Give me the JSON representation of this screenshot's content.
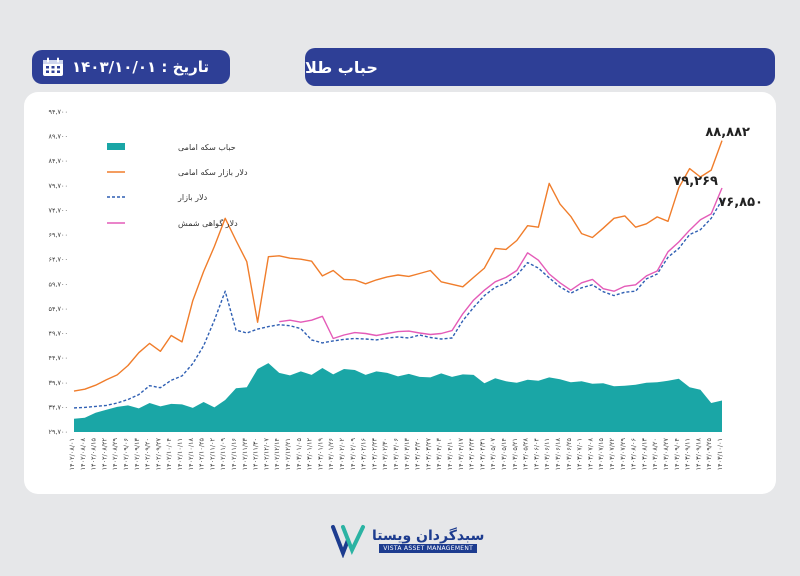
{
  "header": {
    "title": "حباب طلا",
    "date_label": "تاریخ : ۱۴۰۳/۱۰/۰۱",
    "calendar_icon": "calendar-icon"
  },
  "branding": {
    "name": "سبدگردان ویستا",
    "subtitle": "VISTA ASSET MANAGEMENT"
  },
  "colors": {
    "header_bg": "#2e3f96",
    "bubble": "#1aa6a6",
    "coin_dollar": "#f07d2b",
    "market_dollar": "#2f5fb3",
    "cert_dollar": "#e45bb8"
  },
  "chart_data": {
    "type": "line",
    "title": "",
    "xlabel": "",
    "ylabel": "",
    "y_tick_labels": [
      "۲۹,۷۰۰",
      "۳۴,۷۰۰",
      "۳۹,۷۰۰",
      "۴۴,۷۰۰",
      "۴۹,۷۰۰",
      "۵۴,۷۰۰",
      "۵۹,۷۰۰",
      "۶۴,۷۰۰",
      "۶۹,۷۰۰",
      "۷۴,۷۰۰",
      "۷۹,۷۰۰",
      "۸۴,۷۰۰",
      "۸۹,۷۰۰",
      "۹۴,۷۰۰"
    ],
    "ylim": [
      29700,
      94700
    ],
    "x_labels": [
      "۱۴۰۲/۰۸/۰۱",
      "۱۴۰۲/۰۸/۰۸",
      "۱۴۰۲/۰۸/۱۵",
      "۱۴۰۲/۰۸/۲۲",
      "۱۴۰۲/۰۸/۲۹",
      "۱۴۰۲/۰۹/۰۶",
      "۱۴۰۲/۰۹/۱۳",
      "۱۴۰۲/۰۹/۲۰",
      "۱۴۰۲/۰۹/۲۷",
      "۱۴۰۲/۱۰/۰۴",
      "۱۴۰۲/۱۰/۱۱",
      "۱۴۰۲/۱۰/۱۸",
      "۱۴۰۲/۱۰/۲۵",
      "۱۴۰۲/۱۱/۰۲",
      "۱۴۰۲/۱۱/۰۹",
      "۱۴۰۲/۱۱/۱۶",
      "۱۴۰۲/۱۱/۲۳",
      "۱۴۰۲/۱۱/۳۰",
      "۱۴۰۲/۱۲/۰۷",
      "۱۴۰۲/۱۲/۱۴",
      "۱۴۰۲/۱۲/۲۱",
      "۱۴۰۳/۰۱/۰۵",
      "۱۴۰۳/۰۱/۱۲",
      "۱۴۰۳/۰۱/۱۹",
      "۱۴۰۳/۰۱/۲۶",
      "۱۴۰۳/۰۲/۰۲",
      "۱۴۰۳/۰۲/۰۹",
      "۱۴۰۳/۰۲/۱۶",
      "۱۴۰۳/۰۲/۲۳",
      "۱۴۰۳/۰۲/۳۰",
      "۱۴۰۳/۰۳/۰۶",
      "۱۴۰۳/۰۳/۱۳",
      "۱۴۰۳/۰۳/۲۰",
      "۱۴۰۳/۰۳/۲۷",
      "۱۴۰۳/۰۴/۰۳",
      "۱۴۰۳/۰۴/۱۰",
      "۱۴۰۳/۰۴/۱۷",
      "۱۴۰۳/۰۴/۲۴",
      "۱۴۰۳/۰۴/۳۱",
      "۱۴۰۳/۰۵/۰۷",
      "۱۴۰۳/۰۵/۱۴",
      "۱۴۰۳/۰۵/۲۱",
      "۱۴۰۳/۰۵/۲۸",
      "۱۴۰۳/۰۶/۰۴",
      "۱۴۰۳/۰۶/۱۱",
      "۱۴۰۳/۰۶/۱۸",
      "۱۴۰۳/۰۶/۲۵",
      "۱۴۰۳/۰۷/۰۱",
      "۱۴۰۳/۰۷/۰۸",
      "۱۴۰۳/۰۷/۱۵",
      "۱۴۰۳/۰۷/۲۲",
      "۱۴۰۳/۰۷/۲۹",
      "۱۴۰۳/۰۸/۰۶",
      "۱۴۰۳/۰۸/۱۳",
      "۱۴۰۳/۰۸/۲۰",
      "۱۴۰۳/۰۸/۲۷",
      "۱۴۰۳/۰۹/۰۴",
      "۱۴۰۳/۰۹/۱۱",
      "۱۴۰۳/۰۹/۱۸",
      "۱۴۰۳/۰۹/۲۵",
      "۱۴۰۳/۱۰/۰۱"
    ],
    "legend_position": "top-left",
    "end_labels": {
      "coin_dollar": "۸۸,۸۸۲",
      "cert_dollar": "۷۹,۲۶۹",
      "market_dollar": "۷۶,۸۵۰"
    },
    "series": [
      {
        "name": "حباب سکه امامی",
        "type": "area",
        "color": "#1aa6a6",
        "values": [
          32400,
          32600,
          33600,
          34200,
          34800,
          35100,
          34500,
          35600,
          34900,
          35400,
          35300,
          34600,
          35800,
          34700,
          36200,
          38600,
          38800,
          42500,
          43700,
          41700,
          41200,
          42000,
          41300,
          42700,
          41400,
          42500,
          42300,
          41300,
          42000,
          41700,
          41000,
          41500,
          40900,
          40800,
          41600,
          40900,
          41400,
          41300,
          39600,
          40600,
          40000,
          39700,
          40300,
          40100,
          40800,
          40400,
          39800,
          40000,
          39500,
          39600,
          39000,
          39100,
          39300,
          39700,
          39800,
          40100,
          40500,
          38800,
          38300,
          35600,
          36100
        ]
      },
      {
        "name": "دلار بازار سکه امامی",
        "type": "line",
        "color": "#f07d2b",
        "values": [
          38000,
          38400,
          39200,
          40300,
          41300,
          43200,
          45800,
          47700,
          46100,
          49300,
          48000,
          56400,
          62300,
          67400,
          73100,
          68600,
          64300,
          52000,
          65300,
          65500,
          65000,
          64800,
          64400,
          61400,
          62500,
          60700,
          60600,
          59800,
          60600,
          61200,
          61600,
          61300,
          61900,
          62500,
          60200,
          59700,
          59200,
          61100,
          63000,
          67000,
          66800,
          68600,
          71600,
          71300,
          80200,
          76000,
          73500,
          70000,
          69200,
          71100,
          73100,
          73600,
          71300,
          72000,
          73400,
          72500,
          79300,
          83200,
          81500,
          82900,
          88882
        ]
      },
      {
        "name": "دلار بازار",
        "type": "line",
        "dashed": true,
        "color": "#2f5fb3",
        "values": [
          34600,
          34700,
          34900,
          35100,
          35600,
          36300,
          37300,
          39100,
          38700,
          40200,
          41100,
          43600,
          47200,
          52400,
          58300,
          50400,
          49800,
          50600,
          51100,
          51500,
          51300,
          50700,
          48400,
          47800,
          48200,
          48500,
          48700,
          48600,
          48400,
          48800,
          49000,
          48800,
          49400,
          48900,
          48600,
          48800,
          52300,
          55000,
          57400,
          59100,
          59900,
          61500,
          64100,
          63000,
          61000,
          59200,
          57900,
          59000,
          59600,
          58200,
          57400,
          58100,
          58300,
          60800,
          61800,
          65200,
          67000,
          69800,
          70800,
          73100,
          76850
        ]
      },
      {
        "name": "دلار گواهی شمش",
        "type": "line",
        "color": "#e45bb8",
        "values": [
          null,
          null,
          null,
          null,
          null,
          null,
          null,
          null,
          null,
          null,
          null,
          null,
          null,
          null,
          null,
          null,
          null,
          null,
          null,
          52100,
          52400,
          52000,
          52400,
          53200,
          48700,
          49400,
          49900,
          49700,
          49300,
          49700,
          50100,
          50200,
          49800,
          49500,
          49700,
          50300,
          53700,
          56500,
          58500,
          60200,
          61100,
          62500,
          66100,
          64600,
          61800,
          60000,
          58500,
          60000,
          60700,
          58800,
          58300,
          59300,
          59600,
          61400,
          62400,
          66300,
          68300,
          70700,
          72800,
          74000,
          79269
        ]
      }
    ]
  }
}
